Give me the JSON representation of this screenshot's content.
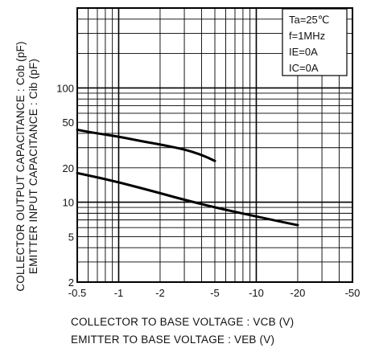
{
  "chart_data": {
    "type": "line",
    "x_scale": "log",
    "y_scale": "log",
    "xlim": [
      -0.5,
      -50
    ],
    "ylim": [
      2,
      500
    ],
    "grid": true,
    "x_ticks": [
      -0.5,
      -1,
      -2,
      -5,
      -10,
      -20,
      -50
    ],
    "x_tick_labels": [
      "-0.5",
      "-1",
      "-2",
      "-5",
      "-10",
      "-20",
      "-50"
    ],
    "y_ticks": [
      2,
      5,
      10,
      20,
      50,
      100
    ],
    "y_tick_labels": [
      "2",
      "5",
      "10",
      "20",
      "50",
      "100"
    ],
    "ylabel_lines": [
      "COLLECTOR OUTPUT CAPACITANCE : Cob (pF)",
      "EMITTER INPUT CAPACITANCE : Cib (pF)"
    ],
    "xlabel_lines": [
      "COLLECTOR TO BASE VOLTAGE : VCB (V)",
      "EMITTER TO BASE VOLTAGE : VEB (V)"
    ],
    "legend": {
      "position": "top-right",
      "lines": [
        "Ta=25℃",
        "f=1MHz",
        "IE=0A",
        "IC=0A"
      ]
    },
    "series": [
      {
        "x": [
          -0.5,
          -0.7,
          -1,
          -1.5,
          -2,
          -3,
          -4,
          -5
        ],
        "values": [
          43,
          40,
          37.5,
          34,
          32,
          29,
          26,
          23
        ]
      },
      {
        "x": [
          -0.5,
          -1,
          -2,
          -3,
          -5,
          -10,
          -20
        ],
        "values": [
          18,
          15,
          12,
          10.5,
          9,
          7.5,
          6.3
        ]
      }
    ]
  }
}
